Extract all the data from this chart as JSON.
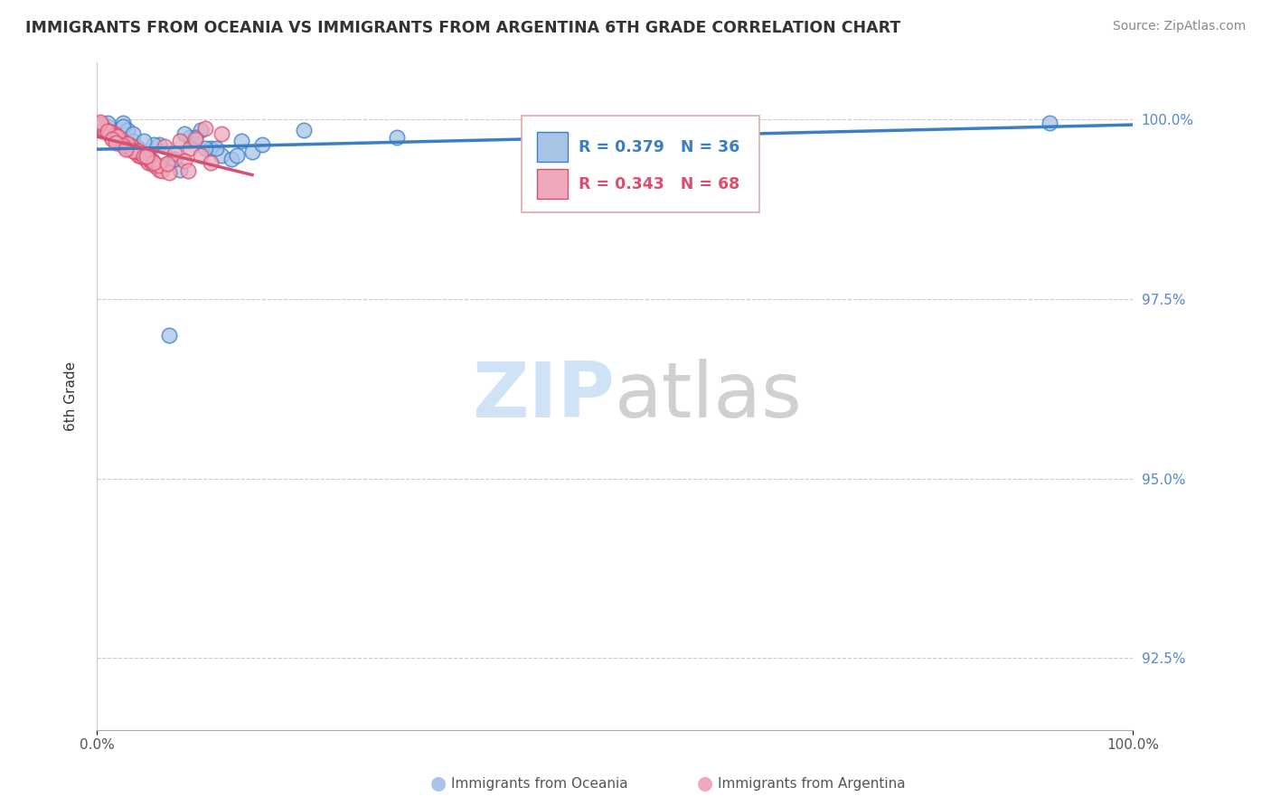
{
  "title": "IMMIGRANTS FROM OCEANIA VS IMMIGRANTS FROM ARGENTINA 6TH GRADE CORRELATION CHART",
  "source": "Source: ZipAtlas.com",
  "ylabel": "6th Grade",
  "legend1_label": "R = 0.379   N = 36",
  "legend2_label": "R = 0.343   N = 68",
  "oceania_color": "#aac4e8",
  "argentina_color": "#f0a8bc",
  "trendline_oceania_color": "#3a7ec8",
  "trendline_argentina_color": "#d85070",
  "ytick_color": "#5588cc",
  "xtick_color": "#555555",
  "grid_color": "#cccccc",
  "oceania_x": [
    0.005,
    0.01,
    0.015,
    0.02,
    0.025,
    0.03,
    0.035,
    0.04,
    0.05,
    0.06,
    0.07,
    0.08,
    0.09,
    0.1,
    0.11,
    0.12,
    0.13,
    0.14,
    0.15,
    0.16,
    0.025,
    0.035,
    0.055,
    0.075,
    0.095,
    0.115,
    0.135,
    0.01,
    0.045,
    0.085,
    0.2,
    0.55,
    0.92,
    0.29,
    0.07,
    0.105
  ],
  "oceania_y": [
    0.9985,
    0.999,
    0.998,
    0.9975,
    0.9995,
    0.9985,
    0.997,
    0.996,
    0.995,
    0.9965,
    0.994,
    0.993,
    0.9975,
    0.9985,
    0.996,
    0.995,
    0.9945,
    0.997,
    0.9955,
    0.9965,
    0.999,
    0.998,
    0.9965,
    0.9945,
    0.9975,
    0.996,
    0.995,
    0.9995,
    0.997,
    0.998,
    0.9985,
    0.999,
    0.9995,
    0.9975,
    0.97,
    0.996
  ],
  "argentina_x": [
    0.003,
    0.007,
    0.01,
    0.013,
    0.017,
    0.02,
    0.023,
    0.027,
    0.03,
    0.033,
    0.037,
    0.04,
    0.043,
    0.047,
    0.05,
    0.053,
    0.057,
    0.06,
    0.063,
    0.007,
    0.013,
    0.023,
    0.033,
    0.043,
    0.053,
    0.003,
    0.017,
    0.027,
    0.037,
    0.047,
    0.007,
    0.013,
    0.023,
    0.033,
    0.043,
    0.053,
    0.003,
    0.017,
    0.027,
    0.037,
    0.003,
    0.01,
    0.02,
    0.03,
    0.04,
    0.05,
    0.06,
    0.07,
    0.08,
    0.09,
    0.1,
    0.11,
    0.12,
    0.015,
    0.025,
    0.035,
    0.045,
    0.055,
    0.065,
    0.075,
    0.085,
    0.095,
    0.105,
    0.018,
    0.028,
    0.048,
    0.068,
    0.088
  ],
  "argentina_y": [
    0.999,
    0.9985,
    0.9982,
    0.9978,
    0.9975,
    0.997,
    0.9968,
    0.9965,
    0.996,
    0.9958,
    0.9955,
    0.995,
    0.9948,
    0.9945,
    0.994,
    0.9938,
    0.9935,
    0.993,
    0.9928,
    0.9988,
    0.9983,
    0.9972,
    0.9962,
    0.9952,
    0.9942,
    0.9992,
    0.998,
    0.9968,
    0.9958,
    0.9948,
    0.9986,
    0.9982,
    0.9974,
    0.9964,
    0.9954,
    0.9944,
    0.9994,
    0.9978,
    0.9966,
    0.9956,
    0.9996,
    0.9984,
    0.9976,
    0.9966,
    0.9956,
    0.9946,
    0.9936,
    0.9926,
    0.997,
    0.996,
    0.995,
    0.994,
    0.998,
    0.9972,
    0.9964,
    0.9956,
    0.9948,
    0.994,
    0.9962,
    0.9952,
    0.9942,
    0.9972,
    0.9988,
    0.9968,
    0.9958,
    0.9948,
    0.9938,
    0.9928
  ],
  "xlim": [
    0.0,
    1.0
  ],
  "ylim": [
    0.915,
    1.008
  ],
  "ytick_vals": [
    0.925,
    0.95,
    0.975,
    1.0
  ],
  "ytick_labels": [
    "92.5%",
    "95.0%",
    "97.5%",
    "100.0%"
  ],
  "xtick_vals": [
    0.0,
    1.0
  ],
  "xtick_labels": [
    "0.0%",
    "100.0%"
  ]
}
